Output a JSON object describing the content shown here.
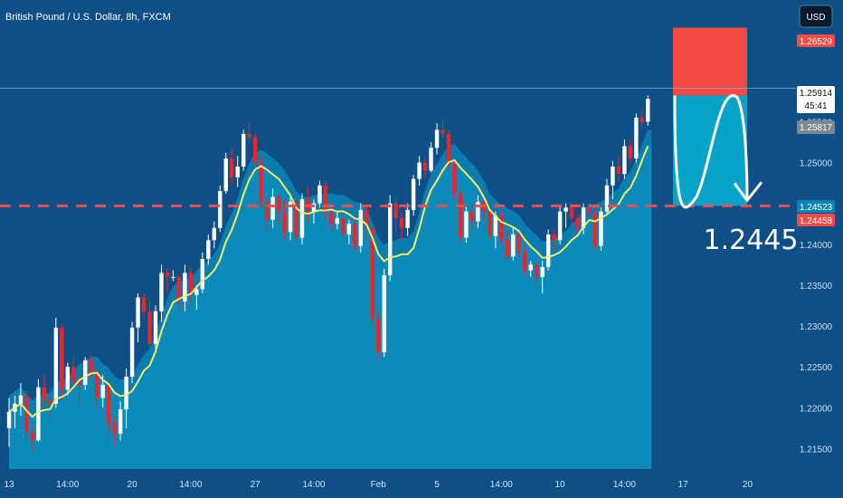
{
  "header": {
    "symbol_title": "British Pound / U.S. Dollar, 8h, FXCM",
    "currency_button": "USD"
  },
  "price_tags": {
    "stop": "1.26529",
    "last": "1.25914",
    "countdown": "45:41",
    "prev": "1.25817",
    "line_a": "1.24523",
    "line_b": "1.24458"
  },
  "annotation": {
    "target_label": "1.2445"
  },
  "colors": {
    "up": "#ffffff",
    "down": "#e8262e",
    "ma": "#f3ee6a",
    "cloud": "#0a84b5",
    "stop": "#f24a44",
    "target": "#0aa3c8",
    "dash": "#ef4d4d"
  },
  "chart_data": {
    "type": "candlestick",
    "ylim": [
      1.2125,
      1.269
    ],
    "yticks": [
      "1.21500",
      "1.22000",
      "1.22500",
      "1.23000",
      "1.23500",
      "1.24000",
      "1.24500",
      "1.25000",
      "1.25500"
    ],
    "xtick_labels": [
      "13",
      "14:00",
      "20",
      "14:00",
      "27",
      "14:00",
      "Feb",
      "5",
      "14:00",
      "10",
      "14:00",
      "17",
      "20"
    ],
    "xtick_bars": [
      0,
      10,
      21,
      31,
      42,
      52,
      63,
      73,
      84,
      94,
      105,
      115,
      126
    ],
    "horizontal_line": 1.2447,
    "short_position": {
      "entry": 1.2582,
      "stop": 1.2665,
      "target": 1.2447
    },
    "ohlc": [
      [
        1.2175,
        1.2212,
        1.2152,
        1.2195
      ],
      [
        1.2195,
        1.2215,
        1.2175,
        1.2205
      ],
      [
        1.2205,
        1.223,
        1.219,
        1.2215
      ],
      [
        1.2215,
        1.222,
        1.216,
        1.217
      ],
      [
        1.217,
        1.218,
        1.2145,
        1.216
      ],
      [
        1.216,
        1.2235,
        1.2158,
        1.2225
      ],
      [
        1.2225,
        1.224,
        1.22,
        1.221
      ],
      [
        1.221,
        1.2225,
        1.2185,
        1.2205
      ],
      [
        1.2205,
        1.231,
        1.22,
        1.2298
      ],
      [
        1.2298,
        1.2302,
        1.221,
        1.2222
      ],
      [
        1.2222,
        1.2255,
        1.2215,
        1.225
      ],
      [
        1.225,
        1.2262,
        1.2225,
        1.2232
      ],
      [
        1.2232,
        1.2245,
        1.22,
        1.2228
      ],
      [
        1.2228,
        1.2262,
        1.2222,
        1.2258
      ],
      [
        1.2258,
        1.2265,
        1.2235,
        1.2242
      ],
      [
        1.2242,
        1.2248,
        1.22,
        1.2212
      ],
      [
        1.2212,
        1.224,
        1.22,
        1.2228
      ],
      [
        1.2228,
        1.2232,
        1.217,
        1.218
      ],
      [
        1.218,
        1.219,
        1.2155,
        1.2168
      ],
      [
        1.2168,
        1.2208,
        1.216,
        1.2198
      ],
      [
        1.2198,
        1.2248,
        1.2175,
        1.2238
      ],
      [
        1.2238,
        1.2305,
        1.223,
        1.2298
      ],
      [
        1.2298,
        1.234,
        1.228,
        1.2335
      ],
      [
        1.2335,
        1.234,
        1.231,
        1.2318
      ],
      [
        1.2318,
        1.2332,
        1.2265,
        1.2278
      ],
      [
        1.2278,
        1.2325,
        1.227,
        1.2318
      ],
      [
        1.2318,
        1.2375,
        1.2305,
        1.2365
      ],
      [
        1.2365,
        1.237,
        1.234,
        1.236
      ],
      [
        1.236,
        1.2368,
        1.2355,
        1.236
      ],
      [
        1.236,
        1.2362,
        1.2322,
        1.233
      ],
      [
        1.233,
        1.2375,
        1.2318,
        1.2365
      ],
      [
        1.2365,
        1.2372,
        1.2325,
        1.2338
      ],
      [
        1.2338,
        1.235,
        1.232,
        1.2345
      ],
      [
        1.2345,
        1.239,
        1.234,
        1.2382
      ],
      [
        1.2382,
        1.2412,
        1.2375,
        1.2405
      ],
      [
        1.2405,
        1.2428,
        1.2395,
        1.242
      ],
      [
        1.242,
        1.2472,
        1.2415,
        1.2465
      ],
      [
        1.2465,
        1.2512,
        1.2462,
        1.2505
      ],
      [
        1.2505,
        1.2518,
        1.2472,
        1.2482
      ],
      [
        1.2482,
        1.2508,
        1.247,
        1.2495
      ],
      [
        1.2495,
        1.254,
        1.249,
        1.2535
      ],
      [
        1.2535,
        1.255,
        1.2525,
        1.2531
      ],
      [
        1.2531,
        1.2535,
        1.2495,
        1.25
      ],
      [
        1.25,
        1.2508,
        1.2445,
        1.2452
      ],
      [
        1.2452,
        1.246,
        1.2415,
        1.243
      ],
      [
        1.243,
        1.2468,
        1.242,
        1.2458
      ],
      [
        1.2458,
        1.2462,
        1.2425,
        1.244
      ],
      [
        1.244,
        1.2455,
        1.2405,
        1.2415
      ],
      [
        1.2415,
        1.246,
        1.2405,
        1.2452
      ],
      [
        1.2452,
        1.2456,
        1.2402,
        1.2408
      ],
      [
        1.2408,
        1.2462,
        1.24,
        1.2455
      ],
      [
        1.2455,
        1.247,
        1.2428,
        1.244
      ],
      [
        1.244,
        1.2455,
        1.2425,
        1.245
      ],
      [
        1.245,
        1.2478,
        1.2445,
        1.2472
      ],
      [
        1.2472,
        1.2478,
        1.243,
        1.2438
      ],
      [
        1.2438,
        1.2448,
        1.2418,
        1.2425
      ],
      [
        1.2425,
        1.244,
        1.2418,
        1.2432
      ],
      [
        1.2432,
        1.2438,
        1.2408,
        1.2412
      ],
      [
        1.2412,
        1.243,
        1.24,
        1.2425
      ],
      [
        1.2425,
        1.243,
        1.2392,
        1.2398
      ],
      [
        1.2398,
        1.245,
        1.239,
        1.2442
      ],
      [
        1.2442,
        1.2448,
        1.2405,
        1.242
      ],
      [
        1.242,
        1.2422,
        1.23,
        1.2308
      ],
      [
        1.2308,
        1.2318,
        1.226,
        1.2268
      ],
      [
        1.2268,
        1.237,
        1.2262,
        1.2362
      ],
      [
        1.2362,
        1.246,
        1.2355,
        1.245
      ],
      [
        1.245,
        1.2455,
        1.2415,
        1.2432
      ],
      [
        1.2432,
        1.244,
        1.2405,
        1.242
      ],
      [
        1.242,
        1.245,
        1.241,
        1.2442
      ],
      [
        1.2442,
        1.2485,
        1.2435,
        1.248
      ],
      [
        1.248,
        1.2508,
        1.2472,
        1.25
      ],
      [
        1.25,
        1.2505,
        1.2482,
        1.249
      ],
      [
        1.249,
        1.2525,
        1.2488,
        1.2518
      ],
      [
        1.2518,
        1.2548,
        1.251,
        1.254
      ],
      [
        1.254,
        1.2552,
        1.253,
        1.2535
      ],
      [
        1.2535,
        1.254,
        1.249,
        1.2498
      ],
      [
        1.2498,
        1.2502,
        1.2455,
        1.2462
      ],
      [
        1.2462,
        1.2468,
        1.24,
        1.2408
      ],
      [
        1.2408,
        1.2448,
        1.2402,
        1.244
      ],
      [
        1.244,
        1.245,
        1.2418,
        1.2428
      ],
      [
        1.2428,
        1.246,
        1.242,
        1.2452
      ],
      [
        1.2452,
        1.2455,
        1.243,
        1.244
      ],
      [
        1.244,
        1.2448,
        1.2402,
        1.241
      ],
      [
        1.241,
        1.244,
        1.2395,
        1.2435
      ],
      [
        1.2435,
        1.244,
        1.24,
        1.2405
      ],
      [
        1.2405,
        1.2418,
        1.238,
        1.2385
      ],
      [
        1.2385,
        1.242,
        1.238,
        1.2412
      ],
      [
        1.2412,
        1.2415,
        1.2385,
        1.239
      ],
      [
        1.239,
        1.24,
        1.236,
        1.2368
      ],
      [
        1.2368,
        1.238,
        1.236,
        1.2375
      ],
      [
        1.2375,
        1.2378,
        1.235,
        1.236
      ],
      [
        1.236,
        1.238,
        1.234,
        1.2372
      ],
      [
        1.2372,
        1.2418,
        1.2368,
        1.2412
      ],
      [
        1.2412,
        1.2418,
        1.2395,
        1.2405
      ],
      [
        1.2405,
        1.2448,
        1.24,
        1.244
      ],
      [
        1.244,
        1.245,
        1.242,
        1.2445
      ],
      [
        1.2445,
        1.245,
        1.2425,
        1.2432
      ],
      [
        1.2432,
        1.2438,
        1.2415,
        1.242
      ],
      [
        1.242,
        1.245,
        1.2412,
        1.2445
      ],
      [
        1.2445,
        1.245,
        1.243,
        1.2438
      ],
      [
        1.2438,
        1.245,
        1.239,
        1.2398
      ],
      [
        1.2398,
        1.2445,
        1.2392,
        1.244
      ],
      [
        1.244,
        1.248,
        1.2435,
        1.2472
      ],
      [
        1.2472,
        1.2502,
        1.2455,
        1.2495
      ],
      [
        1.2495,
        1.2508,
        1.2478,
        1.2486
      ],
      [
        1.2486,
        1.2528,
        1.248,
        1.252
      ],
      [
        1.252,
        1.2528,
        1.2498,
        1.2505
      ],
      [
        1.2505,
        1.256,
        1.25,
        1.2555
      ],
      [
        1.2555,
        1.2565,
        1.2545,
        1.255
      ],
      [
        1.255,
        1.2582,
        1.2545,
        1.2578
      ]
    ]
  }
}
